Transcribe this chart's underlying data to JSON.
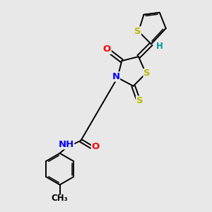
{
  "bg_color": "#e8e8e8",
  "bond_color": "#000000",
  "atom_colors": {
    "S": "#b8b800",
    "N": "#0000ff",
    "O": "#ff0000",
    "H": "#009999",
    "C": "#000000"
  },
  "font_size": 8.5,
  "lw": 1.4,
  "lw_thin": 1.1
}
